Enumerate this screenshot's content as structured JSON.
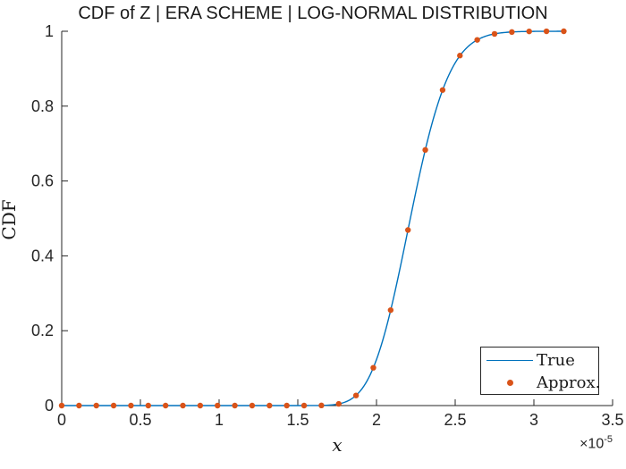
{
  "title": "CDF of Z | ERA SCHEME | LOG-NORMAL DISTRIBUTION",
  "axes": {
    "xlabel": "x",
    "ylabel": "CDF",
    "x_multiplier_base": "×10",
    "x_multiplier_exp": "-5",
    "axis_color": "#262626",
    "tick_label_color": "#262626",
    "xlim": [
      0,
      3.5
    ],
    "ylim": [
      0,
      1
    ],
    "xtick_values": [
      0,
      0.5,
      1,
      1.5,
      2,
      2.5,
      3,
      3.5
    ],
    "xtick_labels": [
      "0",
      "0.5",
      "1",
      "1.5",
      "2",
      "2.5",
      "3",
      "3.5"
    ],
    "ytick_values": [
      0,
      0.2,
      0.4,
      0.6,
      0.8,
      1
    ],
    "ytick_labels": [
      "0",
      "0.2",
      "0.4",
      "0.6",
      "0.8",
      "1"
    ]
  },
  "legend": {
    "position": "lower right",
    "entries": [
      {
        "label": "True",
        "marker": "line",
        "color": "#0072BD"
      },
      {
        "label": "Approx.",
        "marker": "dot",
        "color": "#D95319"
      }
    ]
  },
  "chart_data": {
    "type": "line+scatter",
    "title": "CDF of Z | ERA SCHEME | LOG-NORMAL DISTRIBUTION",
    "xlabel": "x",
    "ylabel": "CDF",
    "x_units_multiplier": "1e-5",
    "xlim": [
      0,
      3.5
    ],
    "ylim": [
      0,
      1
    ],
    "grid": false,
    "legend_position": "lower right",
    "series": [
      {
        "name": "True",
        "type": "line",
        "color": "#0072BD",
        "line_width": 1.4,
        "lognormal": {
          "median": 2.215,
          "sigma": 0.088
        },
        "x_start": 0,
        "x_end": 3.19,
        "x": [
          0,
          0.5,
          1.0,
          1.3,
          1.5,
          1.6,
          1.65,
          1.7,
          1.75,
          1.8,
          1.85,
          1.9,
          1.95,
          2.0,
          2.05,
          2.1,
          2.15,
          2.2,
          2.25,
          2.3,
          2.35,
          2.4,
          2.45,
          2.5,
          2.55,
          2.6,
          2.65,
          2.7,
          2.75,
          2.8,
          2.85,
          2.9,
          3.0,
          3.1,
          3.19
        ],
        "y": [
          0,
          0,
          0,
          0,
          0,
          0.0001,
          0.0004,
          0.0013,
          0.0037,
          0.0092,
          0.0203,
          0.0407,
          0.0738,
          0.123,
          0.1897,
          0.2723,
          0.3677,
          0.4692,
          0.5706,
          0.6657,
          0.7489,
          0.8189,
          0.8737,
          0.9155,
          0.9447,
          0.9657,
          0.9792,
          0.9878,
          0.993,
          0.9961,
          0.9979,
          0.9989,
          0.9997,
          0.9999,
          1.0
        ]
      },
      {
        "name": "Approx.",
        "type": "scatter",
        "color": "#D95319",
        "marker_radius": 3.2,
        "x": [
          0,
          0.11,
          0.22,
          0.33,
          0.44,
          0.55,
          0.66,
          0.77,
          0.88,
          0.99,
          1.1,
          1.21,
          1.32,
          1.43,
          1.54,
          1.65,
          1.76,
          1.87,
          1.98,
          2.09,
          2.2,
          2.31,
          2.42,
          2.53,
          2.64,
          2.75,
          2.86,
          2.97,
          3.08,
          3.19
        ],
        "y": [
          0,
          0,
          0,
          0,
          0,
          0,
          0,
          0,
          0,
          0,
          0,
          0,
          0,
          0,
          0,
          0.0004,
          0.0045,
          0.027,
          0.101,
          0.255,
          0.469,
          0.683,
          0.843,
          0.935,
          0.977,
          0.993,
          0.998,
          0.9996,
          0.9999,
          1
        ]
      }
    ]
  }
}
